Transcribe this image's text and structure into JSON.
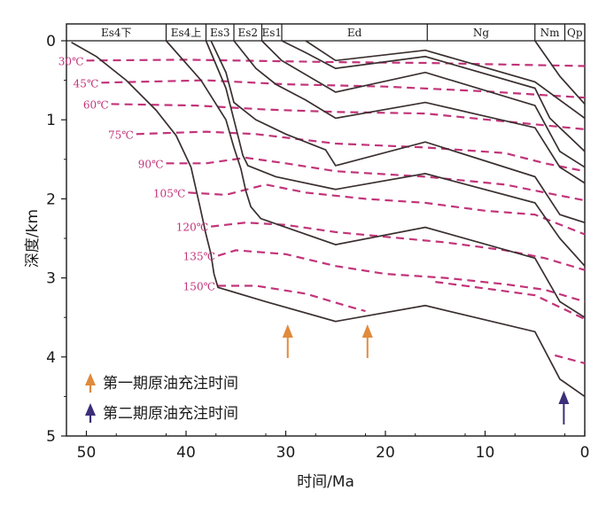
{
  "chart_data": {
    "type": "line",
    "xlabel": "时间/Ma",
    "ylabel": "深度/km",
    "xlim": [
      52,
      0
    ],
    "ylim": [
      0,
      5
    ],
    "x_ticks": [
      "50",
      "40",
      "30",
      "20",
      "10",
      "0"
    ],
    "y_ticks": [
      "0",
      "1",
      "2",
      "3",
      "4",
      "5"
    ],
    "strata": [
      {
        "label": "Es4下",
        "from": 52,
        "to": 42
      },
      {
        "label": "Es4上",
        "from": 42,
        "to": 38
      },
      {
        "label": "Es3",
        "from": 38,
        "to": 35.2
      },
      {
        "label": "Es2",
        "from": 35.2,
        "to": 32.4
      },
      {
        "label": "Es1",
        "from": 32.4,
        "to": 30.4
      },
      {
        "label": "Ed",
        "from": 30.4,
        "to": 15.8
      },
      {
        "label": "Ng",
        "from": 15.8,
        "to": 5
      },
      {
        "label": "Nm",
        "from": 5,
        "to": 2
      },
      {
        "label": "Qp",
        "from": 2,
        "to": 0
      }
    ],
    "burial_curves": [
      {
        "points": [
          [
            51.5,
            0.02
          ],
          [
            49,
            0.2
          ],
          [
            46,
            0.5
          ],
          [
            43,
            0.88
          ],
          [
            41,
            1.2
          ],
          [
            39.5,
            1.6
          ],
          [
            38.6,
            2.1
          ],
          [
            38,
            2.45
          ],
          [
            37.5,
            2.7
          ],
          [
            37.2,
            2.95
          ],
          [
            36.8,
            3.12
          ],
          [
            32,
            3.3
          ],
          [
            25,
            3.55
          ],
          [
            16,
            3.35
          ],
          [
            5,
            3.68
          ],
          [
            2.5,
            4.28
          ],
          [
            0,
            4.5
          ]
        ]
      },
      {
        "points": [
          [
            42,
            0
          ],
          [
            38.5,
            0.5
          ],
          [
            36,
            1
          ],
          [
            35.2,
            1.35
          ],
          [
            34.5,
            1.62
          ],
          [
            34,
            1.9
          ],
          [
            33.5,
            2.1
          ],
          [
            32.5,
            2.25
          ],
          [
            25,
            2.58
          ],
          [
            16,
            2.36
          ],
          [
            5,
            2.75
          ],
          [
            2.5,
            3.3
          ],
          [
            0,
            3.5
          ]
        ]
      },
      {
        "points": [
          [
            38,
            0
          ],
          [
            36,
            0.6
          ],
          [
            35,
            1.1
          ],
          [
            34.3,
            1.45
          ],
          [
            33.8,
            1.58
          ],
          [
            31,
            1.72
          ],
          [
            25,
            1.88
          ],
          [
            16,
            1.68
          ],
          [
            5,
            2.05
          ],
          [
            2.5,
            2.5
          ],
          [
            0,
            2.85
          ]
        ]
      },
      {
        "points": [
          [
            37.5,
            0
          ],
          [
            36,
            0.4
          ],
          [
            35.2,
            0.78
          ],
          [
            33,
            1.0
          ],
          [
            30,
            1.18
          ],
          [
            26,
            1.38
          ],
          [
            25,
            1.58
          ],
          [
            16,
            1.28
          ],
          [
            5,
            1.72
          ],
          [
            2.5,
            2.2
          ],
          [
            0,
            2.3
          ]
        ]
      },
      {
        "points": [
          [
            35.2,
            0
          ],
          [
            33,
            0.35
          ],
          [
            31,
            0.55
          ],
          [
            28,
            0.75
          ],
          [
            25,
            0.98
          ],
          [
            16,
            0.78
          ],
          [
            5,
            1.1
          ],
          [
            2.5,
            1.6
          ],
          [
            0,
            1.8
          ]
        ]
      },
      {
        "points": [
          [
            32.4,
            0
          ],
          [
            30.4,
            0.25
          ],
          [
            25,
            0.65
          ],
          [
            16,
            0.4
          ],
          [
            5,
            0.82
          ],
          [
            2.5,
            1.4
          ],
          [
            0,
            1.6
          ]
        ]
      },
      {
        "points": [
          [
            30.4,
            0
          ],
          [
            28,
            0.15
          ],
          [
            25,
            0.35
          ],
          [
            16,
            0.2
          ],
          [
            5,
            0.6
          ],
          [
            3.5,
            0.98
          ],
          [
            0,
            1.4
          ]
        ]
      },
      {
        "points": [
          [
            28,
            0
          ],
          [
            25,
            0.25
          ],
          [
            16,
            0.12
          ],
          [
            5,
            0.52
          ],
          [
            0,
            0.98
          ]
        ]
      },
      {
        "points": [
          [
            5,
            0
          ],
          [
            2.5,
            0.45
          ],
          [
            0,
            0.8
          ]
        ]
      }
    ],
    "isotherms": [
      {
        "label": "30℃",
        "points": [
          [
            50,
            0.25
          ],
          [
            40,
            0.24
          ],
          [
            25,
            0.27
          ],
          [
            16,
            0.28
          ],
          [
            8,
            0.3
          ],
          [
            0,
            0.32
          ]
        ]
      },
      {
        "label": "45℃",
        "points": [
          [
            48.5,
            0.53
          ],
          [
            38,
            0.5
          ],
          [
            30,
            0.55
          ],
          [
            20,
            0.58
          ],
          [
            10,
            0.64
          ],
          [
            0,
            0.72
          ]
        ]
      },
      {
        "label": "60℃",
        "points": [
          [
            47.5,
            0.8
          ],
          [
            39,
            0.82
          ],
          [
            32,
            0.87
          ],
          [
            25,
            0.9
          ],
          [
            16,
            0.92
          ],
          [
            8,
            1.02
          ],
          [
            0,
            1.12
          ]
        ]
      },
      {
        "label": "75℃",
        "points": [
          [
            45,
            1.18
          ],
          [
            38,
            1.15
          ],
          [
            33,
            1.18
          ],
          [
            25,
            1.3
          ],
          [
            16,
            1.35
          ],
          [
            8,
            1.42
          ],
          [
            4,
            1.55
          ],
          [
            0,
            1.65
          ]
        ]
      },
      {
        "label": "90℃",
        "points": [
          [
            42,
            1.55
          ],
          [
            38,
            1.55
          ],
          [
            34,
            1.48
          ],
          [
            30,
            1.55
          ],
          [
            25,
            1.65
          ],
          [
            16,
            1.72
          ],
          [
            8,
            1.82
          ],
          [
            4,
            1.92
          ],
          [
            0,
            2.02
          ]
        ]
      },
      {
        "label": "105℃",
        "points": [
          [
            39.8,
            1.92
          ],
          [
            36,
            1.95
          ],
          [
            32,
            1.82
          ],
          [
            28,
            1.92
          ],
          [
            22,
            2.0
          ],
          [
            16,
            2.05
          ],
          [
            10,
            2.15
          ],
          [
            5,
            2.2
          ],
          [
            0,
            2.45
          ]
        ]
      },
      {
        "label": "120℃",
        "points": [
          [
            37.5,
            2.35
          ],
          [
            34,
            2.3
          ],
          [
            30,
            2.33
          ],
          [
            25,
            2.42
          ],
          [
            20,
            2.48
          ],
          [
            14,
            2.55
          ],
          [
            8,
            2.65
          ],
          [
            4,
            2.75
          ],
          [
            0,
            2.9
          ]
        ]
      },
      {
        "label": "135℃",
        "points": [
          [
            36.8,
            2.72
          ],
          [
            35,
            2.65
          ],
          [
            30,
            2.7
          ],
          [
            25,
            2.85
          ],
          [
            20,
            2.95
          ],
          [
            14,
            3.0
          ],
          [
            8,
            3.08
          ],
          [
            4,
            3.15
          ],
          [
            0,
            3.3
          ]
        ]
      },
      {
        "label": "150℃",
        "points": [
          [
            36.8,
            3.1
          ],
          [
            33,
            3.1
          ],
          [
            28,
            3.2
          ],
          [
            24,
            3.35
          ],
          [
            22,
            3.42
          ]
        ]
      },
      {
        "label": "",
        "points": [
          [
            15,
            3.05
          ],
          [
            9,
            3.15
          ],
          [
            5,
            3.22
          ],
          [
            2,
            3.4
          ],
          [
            0,
            3.52
          ]
        ]
      },
      {
        "label": "",
        "points": [
          [
            3,
            3.98
          ],
          [
            0,
            4.08
          ]
        ]
      }
    ],
    "charge_events": [
      {
        "name": "第一期原油充注时间",
        "color": "#e08a3c",
        "times": [
          29.8,
          21.8
        ]
      },
      {
        "name": "第二期原油充注时间",
        "color": "#3d2e7a",
        "times": [
          2.1
        ]
      }
    ],
    "colors": {
      "burial": "#3a2f2f",
      "isotherm": "#c2347a",
      "iso_label": "#c2347a"
    },
    "grid": false
  }
}
